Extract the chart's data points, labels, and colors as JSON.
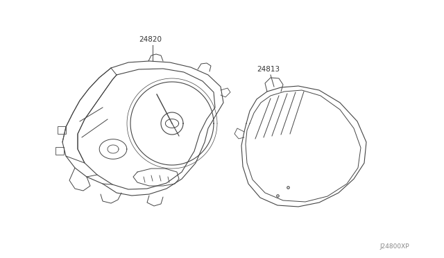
{
  "background_color": "#ffffff",
  "line_color": "#444444",
  "text_color": "#333333",
  "label_24820": "24820",
  "label_24813": "24813",
  "diagram_ref": "J24800XP",
  "figsize": [
    6.4,
    3.72
  ],
  "dpi": 100
}
